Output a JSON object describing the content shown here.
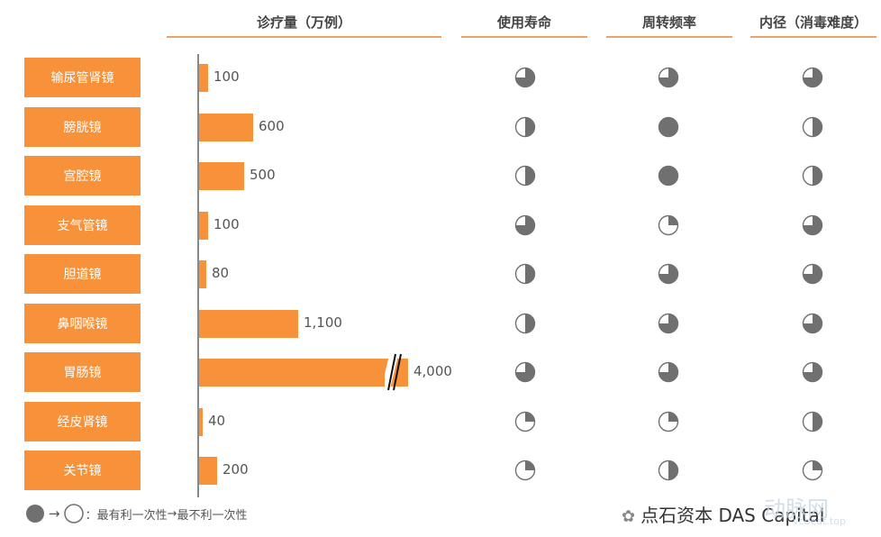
{
  "headers": {
    "bar_title": "诊疗量（万例）",
    "col1": "使用寿命",
    "col2": "周转频率",
    "col3": "内径（消毒难度）"
  },
  "chart_data": {
    "type": "bar",
    "title": "诊疗量（万例）",
    "orientation": "horizontal",
    "categories": [
      "输尿管肾镜",
      "膀胱镜",
      "宫腔镜",
      "支气管镜",
      "胆道镜",
      "鼻咽喉镜",
      "胃肠镜",
      "经皮肾镜",
      "关节镜"
    ],
    "values": [
      100,
      600,
      500,
      100,
      80,
      1100,
      4000,
      40,
      200
    ],
    "value_labels": [
      "100",
      "600",
      "500",
      "100",
      "80",
      "1,100",
      "4,000",
      "40",
      "200"
    ],
    "axis_break_on": "胃肠镜",
    "ratings_scale_note": "fill fraction: 1 = 最有利一次性, 0 = 最不利一次性",
    "ratings": {
      "使用寿命": [
        0.75,
        0.5,
        0.5,
        0.75,
        0.5,
        0.5,
        0.75,
        0.25,
        0.25
      ],
      "周转频率": [
        0.75,
        1.0,
        1.0,
        0.25,
        0.75,
        0.75,
        0.75,
        0.25,
        0.5
      ],
      "内径（消毒难度）": [
        0.75,
        0.5,
        0.5,
        0.75,
        0.75,
        0.75,
        0.75,
        0.5,
        0.25
      ]
    }
  },
  "legend": {
    "text": "：最有利一次性",
    "arrow_text": "最不利一次性"
  },
  "credit": "点石资本 DAS Capital",
  "watermark": "动脉网",
  "watermark_url": "vcbeat.top",
  "colors": {
    "bar": "#f7923a",
    "indicator_fill": "#707070",
    "indicator_stroke": "#707070"
  }
}
